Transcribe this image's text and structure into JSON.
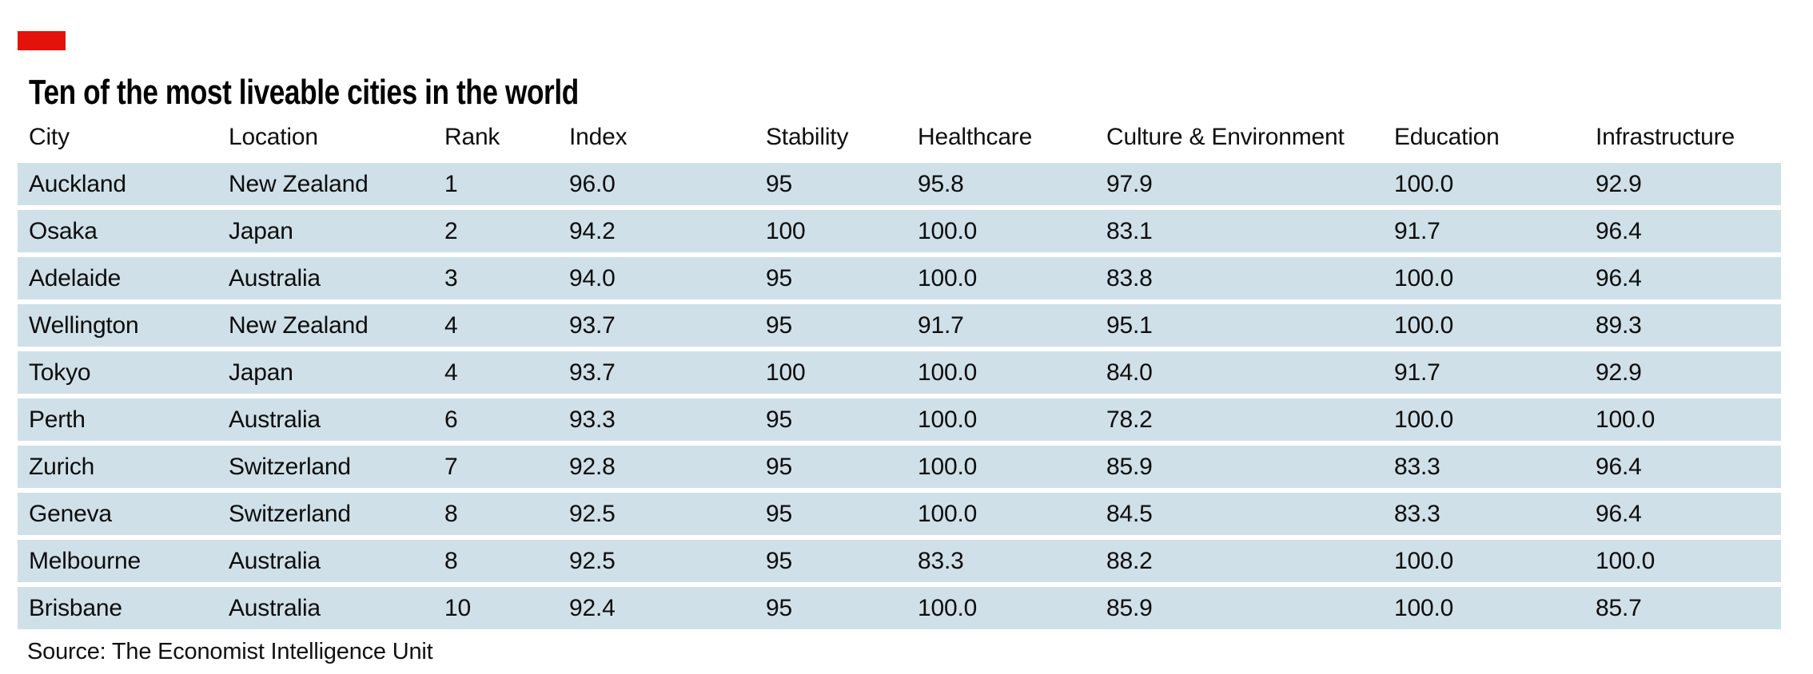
{
  "brand_color": "#e3120b",
  "row_color": "#cfe0e8",
  "title": "Ten of the most liveable cities in the world",
  "source": "Source: The Economist Intelligence Unit",
  "table": {
    "columns": [
      {
        "key": "city",
        "label": "City"
      },
      {
        "key": "location",
        "label": "Location"
      },
      {
        "key": "rank",
        "label": "Rank"
      },
      {
        "key": "index",
        "label": "Index"
      },
      {
        "key": "stability",
        "label": "Stability"
      },
      {
        "key": "healthcare",
        "label": "Healthcare"
      },
      {
        "key": "culture-environment",
        "label": "Culture & Environment"
      },
      {
        "key": "education",
        "label": "Education"
      },
      {
        "key": "infrastructure",
        "label": "Infrastructure"
      }
    ],
    "rows": [
      {
        "cells": [
          "Auckland",
          "New Zealand",
          "1",
          "96.0",
          "95",
          "95.8",
          "97.9",
          "100.0",
          "92.9"
        ]
      },
      {
        "cells": [
          "Osaka",
          "Japan",
          "2",
          "94.2",
          "100",
          "100.0",
          "83.1",
          "91.7",
          "96.4"
        ]
      },
      {
        "cells": [
          "Adelaide",
          "Australia",
          "3",
          "94.0",
          "95",
          "100.0",
          "83.8",
          "100.0",
          "96.4"
        ]
      },
      {
        "cells": [
          "Wellington",
          "New Zealand",
          "4",
          "93.7",
          "95",
          "91.7",
          "95.1",
          "100.0",
          "89.3"
        ]
      },
      {
        "cells": [
          "Tokyo",
          "Japan",
          "4",
          "93.7",
          "100",
          "100.0",
          "84.0",
          "91.7",
          "92.9"
        ]
      },
      {
        "cells": [
          "Perth",
          "Australia",
          "6",
          "93.3",
          "95",
          "100.0",
          "78.2",
          "100.0",
          "100.0"
        ]
      },
      {
        "cells": [
          "Zurich",
          "Switzerland",
          "7",
          "92.8",
          "95",
          "100.0",
          "85.9",
          "83.3",
          "96.4"
        ]
      },
      {
        "cells": [
          "Geneva",
          "Switzerland",
          "8",
          "92.5",
          "95",
          "100.0",
          "84.5",
          "83.3",
          "96.4"
        ]
      },
      {
        "cells": [
          "Melbourne",
          "Australia",
          "8",
          "92.5",
          "95",
          "83.3",
          "88.2",
          "100.0",
          "100.0"
        ]
      },
      {
        "cells": [
          "Brisbane",
          "Australia",
          "10",
          "92.4",
          "95",
          "100.0",
          "85.9",
          "100.0",
          "85.7"
        ]
      }
    ]
  },
  "chart_data": {
    "type": "table",
    "title": "Ten of the most liveable cities in the world",
    "source": "Source: The Economist Intelligence Unit",
    "columns": [
      "City",
      "Location",
      "Rank",
      "Index",
      "Stability",
      "Healthcare",
      "Culture & Environment",
      "Education",
      "Infrastructure"
    ],
    "rows": [
      [
        "Auckland",
        "New Zealand",
        1,
        96.0,
        95,
        95.8,
        97.9,
        100.0,
        92.9
      ],
      [
        "Osaka",
        "Japan",
        2,
        94.2,
        100,
        100.0,
        83.1,
        91.7,
        96.4
      ],
      [
        "Adelaide",
        "Australia",
        3,
        94.0,
        95,
        100.0,
        83.8,
        100.0,
        96.4
      ],
      [
        "Wellington",
        "New Zealand",
        4,
        93.7,
        95,
        91.7,
        95.1,
        100.0,
        89.3
      ],
      [
        "Tokyo",
        "Japan",
        4,
        93.7,
        100,
        100.0,
        84.0,
        91.7,
        92.9
      ],
      [
        "Perth",
        "Australia",
        6,
        93.3,
        95,
        100.0,
        78.2,
        100.0,
        100.0
      ],
      [
        "Zurich",
        "Switzerland",
        7,
        92.8,
        95,
        100.0,
        85.9,
        83.3,
        96.4
      ],
      [
        "Geneva",
        "Switzerland",
        8,
        92.5,
        95,
        100.0,
        84.5,
        83.3,
        96.4
      ],
      [
        "Melbourne",
        "Australia",
        8,
        92.5,
        95,
        83.3,
        88.2,
        100.0,
        100.0
      ],
      [
        "Brisbane",
        "Australia",
        10,
        92.4,
        95,
        100.0,
        85.9,
        100.0,
        85.7
      ]
    ],
    "layout": {
      "striped_rows": true,
      "stripe_color": "#cfe0e8",
      "grid": false,
      "header_weight": "regular"
    }
  }
}
